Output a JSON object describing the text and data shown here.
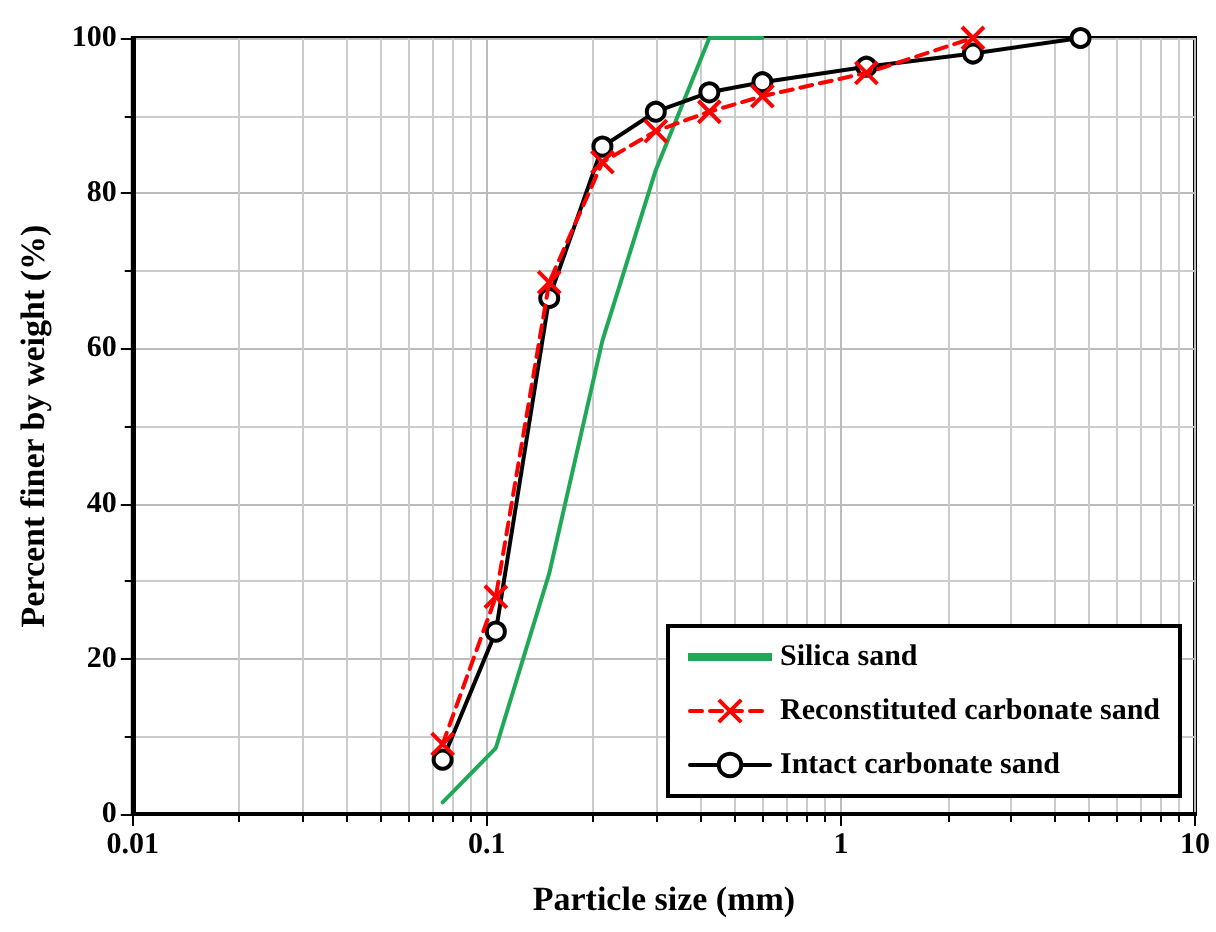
{
  "chart_data": {
    "type": "line",
    "xlabel": "Particle size (mm)",
    "ylabel": "Percent finer by weight (%)",
    "log": "x",
    "xlim": [
      0.01,
      10
    ],
    "xticks": [
      0.01,
      0.1,
      1,
      10
    ],
    "ylim": [
      0,
      100
    ],
    "yticks": [
      0,
      20,
      40,
      60,
      80,
      100
    ],
    "grid": true,
    "legend": "bottom right",
    "series": [
      {
        "name": "Silica sand",
        "color": "#1fa855",
        "marker": "none",
        "line_style": "solid",
        "x": [
          0.075,
          0.106,
          0.15,
          0.212,
          0.3,
          0.425,
          0.6
        ],
        "values": [
          1.5,
          8.5,
          31,
          61,
          83,
          100,
          100
        ]
      },
      {
        "name": "Reconstituted carbonate sand",
        "color": "#ff0000",
        "marker": "cross",
        "line_style": "dashed",
        "x": [
          0.075,
          0.106,
          0.15,
          0.212,
          0.3,
          0.425,
          0.6,
          1.18,
          2.36
        ],
        "values": [
          9,
          28,
          68.5,
          84,
          88,
          90.5,
          92.5,
          95.5,
          100
        ]
      },
      {
        "name": "Intact carbonate sand",
        "color": "#000000",
        "marker": "circle",
        "line_style": "solid",
        "x": [
          0.075,
          0.106,
          0.15,
          0.212,
          0.3,
          0.425,
          0.6,
          1.18,
          2.36,
          4.75
        ],
        "values": [
          7,
          23.5,
          66.5,
          86,
          90.5,
          93,
          94.3,
          96.3,
          98,
          100
        ]
      }
    ]
  }
}
